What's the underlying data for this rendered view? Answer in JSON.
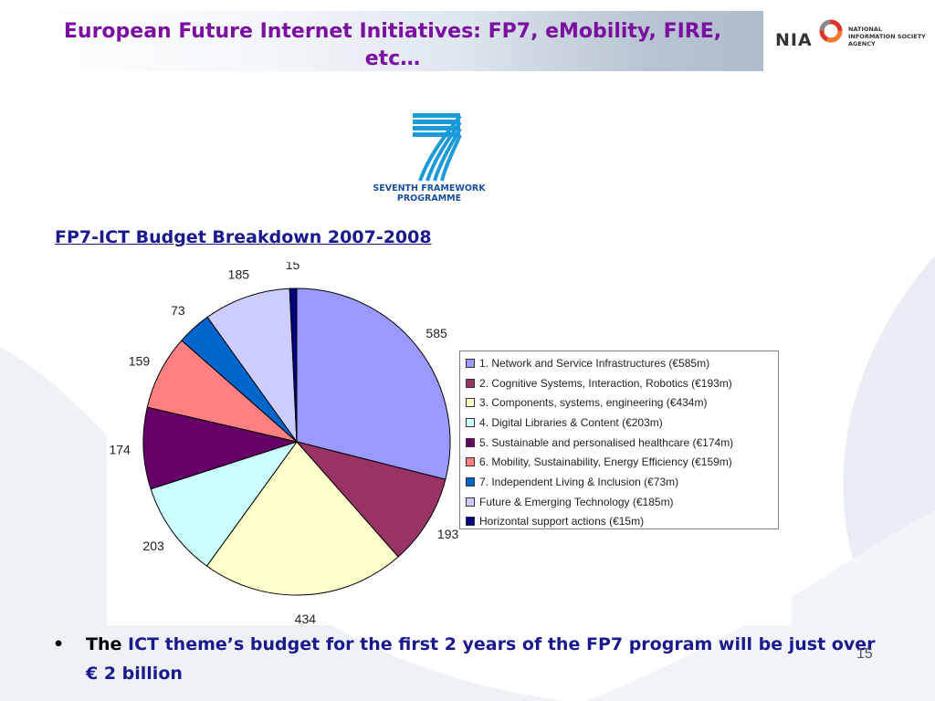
{
  "header": {
    "title": "European Future Internet Initiatives: FP7, eMobility, FIRE, etc…",
    "logo": {
      "abbr": "NIA",
      "lines": [
        "NATIONAL",
        "INFORMATION SOCIETY",
        "AGENCY"
      ]
    }
  },
  "fp7_logo": {
    "line1": "SEVENTH FRAMEWORK",
    "line2": "PROGRAMME"
  },
  "chart_heading": "FP7-ICT Budget Breakdown 2007-2008",
  "chart_data": {
    "type": "pie",
    "title": "",
    "slices": [
      {
        "label": "1. Network and Service Infrastructures (€585m)",
        "value": 585,
        "color": "#9999ff",
        "data_label": "585"
      },
      {
        "label": "2. Cognitive Systems, Interaction, Robotics (€193m)",
        "value": 193,
        "color": "#993366",
        "data_label": "193"
      },
      {
        "label": "3. Components, systems, engineering (€434m)",
        "value": 434,
        "color": "#ffffcc",
        "data_label": "434"
      },
      {
        "label": "4. Digital Libraries & Content (€203m)",
        "value": 203,
        "color": "#ccffff",
        "data_label": "203"
      },
      {
        "label": "5. Sustainable and personalised healthcare (€174m)",
        "value": 174,
        "color": "#660066",
        "data_label": "174"
      },
      {
        "label": "6. Mobility, Sustainability, Energy Efficiency (€159m)",
        "value": 159,
        "color": "#ff8080",
        "data_label": "159"
      },
      {
        "label": "7. Independent Living & Inclusion (€73m)",
        "value": 73,
        "color": "#0066cc",
        "data_label": "73"
      },
      {
        "label": "Future & Emerging Technology (€185m)",
        "value": 185,
        "color": "#ccccff",
        "data_label": "185"
      },
      {
        "label": "Horizontal support actions (€15m)",
        "value": 15,
        "color": "#000080",
        "data_label": "15"
      }
    ],
    "legend_position": "right"
  },
  "bullet": {
    "symbol": "•",
    "lead": "The",
    "body": "ICT theme’s budget for the first 2 years of the FP7 program will be just over € 2 billion"
  },
  "page_number": "15"
}
